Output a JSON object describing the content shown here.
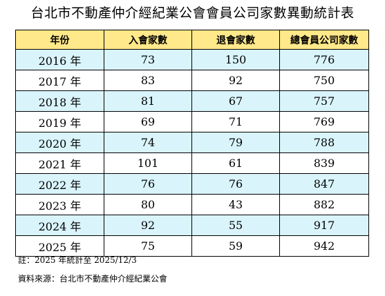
{
  "title": "台北市不動產仲介經紀業公會會員公司家數異動統計表",
  "table": {
    "headers": [
      "年份",
      "入會家數",
      "退會家數",
      "總會員公司家數"
    ],
    "rows": [
      [
        "2016 年",
        "73",
        "150",
        "776"
      ],
      [
        "2017 年",
        "83",
        "92",
        "750"
      ],
      [
        "2018 年",
        "81",
        "67",
        "757"
      ],
      [
        "2019 年",
        "69",
        "71",
        "769"
      ],
      [
        "2020 年",
        "74",
        "79",
        "788"
      ],
      [
        "2021 年",
        "101",
        "61",
        "839"
      ],
      [
        "2022 年",
        "76",
        "76",
        "847"
      ],
      [
        "2023 年",
        "80",
        "43",
        "882"
      ],
      [
        "2024 年",
        "92",
        "55",
        "917"
      ],
      [
        "2025 年",
        "75",
        "59",
        "942"
      ]
    ]
  },
  "notes": {
    "note": "註：2025 年統計至 2025/12/3",
    "source": "資料來源：台北市不動產仲介經紀業公會"
  },
  "colors": {
    "header_background": "#ffe98a",
    "alternate_row_background": "#d9f4fb",
    "border": "#000000"
  }
}
